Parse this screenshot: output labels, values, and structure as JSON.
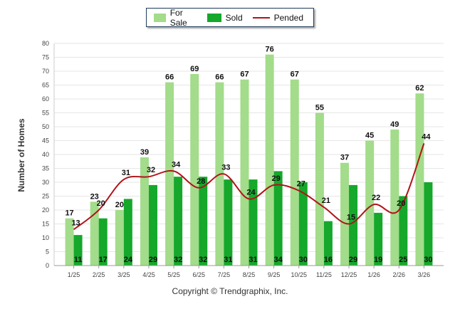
{
  "chart_data": {
    "type": "bar",
    "categories": [
      "1/25",
      "2/25",
      "3/25",
      "4/25",
      "5/25",
      "6/25",
      "7/25",
      "8/25",
      "9/25",
      "10/25",
      "11/25",
      "12/25",
      "1/26",
      "2/26",
      "3/26"
    ],
    "series": [
      {
        "name": "For Sale",
        "type": "bar",
        "color": "#a3dc8a",
        "values": [
          17,
          23,
          20,
          39,
          66,
          69,
          66,
          67,
          76,
          67,
          55,
          37,
          45,
          49,
          62
        ]
      },
      {
        "name": "Sold",
        "type": "bar",
        "color": "#15a82b",
        "values": [
          11,
          17,
          24,
          29,
          32,
          32,
          31,
          31,
          34,
          30,
          16,
          29,
          19,
          25,
          30
        ]
      },
      {
        "name": "Pended",
        "type": "line",
        "color": "#b0141a",
        "values": [
          13,
          20,
          31,
          32,
          34,
          28,
          33,
          24,
          29,
          27,
          21,
          15,
          22,
          20,
          44
        ]
      }
    ],
    "ylabel": "Number of Homes",
    "xlabel": "",
    "ylim": [
      0,
      80
    ],
    "yticks": [
      0,
      5,
      10,
      15,
      20,
      25,
      30,
      35,
      40,
      45,
      50,
      55,
      60,
      65,
      70,
      75,
      80
    ],
    "grid": true,
    "legend_position": "top-center"
  },
  "footer": "Copyright © Trendgraphix, Inc."
}
